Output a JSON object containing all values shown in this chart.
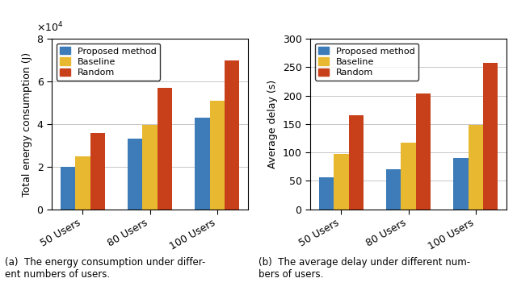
{
  "left_chart": {
    "ylabel": "Total energy consumption (J)",
    "categories": [
      "50 Users",
      "80 Users",
      "100 Users"
    ],
    "proposed": [
      20000,
      33000,
      43000
    ],
    "baseline": [
      25000,
      39500,
      51000
    ],
    "random": [
      36000,
      57000,
      70000
    ],
    "ylim": [
      0,
      80000
    ],
    "yticks": [
      0,
      20000,
      40000,
      60000,
      80000
    ],
    "ytick_labels": [
      "0",
      "2",
      "4",
      "6",
      "8"
    ]
  },
  "right_chart": {
    "ylabel": "Average delay (s)",
    "categories": [
      "50 Users",
      "80 Users",
      "100 Users"
    ],
    "proposed": [
      57,
      70,
      90
    ],
    "baseline": [
      98,
      118,
      148
    ],
    "random": [
      165,
      204,
      258
    ],
    "ylim": [
      0,
      300
    ],
    "yticks": [
      0,
      50,
      100,
      150,
      200,
      250,
      300
    ],
    "ytick_labels": [
      "0",
      "50",
      "100",
      "150",
      "200",
      "250",
      "300"
    ]
  },
  "colors": {
    "proposed": "#3D7CB8",
    "baseline": "#E8B830",
    "random": "#C8401A"
  },
  "legend_labels": [
    "Proposed method",
    "Baseline",
    "Random"
  ],
  "caption_left": "(a)  The energy consumption under differ-\nent numbers of users.",
  "caption_right": "(b)  The average delay under different num-\nbers of users.",
  "bar_width": 0.22,
  "fig_bg": "#f0f0f0"
}
